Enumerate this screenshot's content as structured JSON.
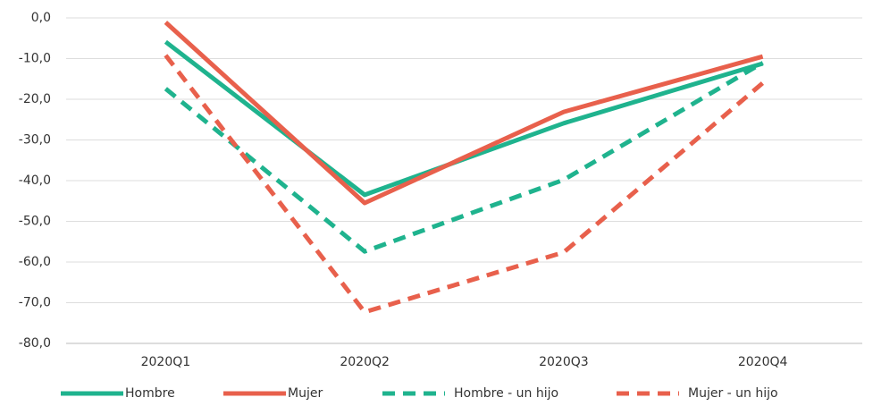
{
  "chart_data": {
    "type": "line",
    "categories": [
      "2020Q1",
      "2020Q2",
      "2020Q3",
      "2020Q4"
    ],
    "series": [
      {
        "name": "Hombre",
        "color": "#1fb38e",
        "dashed": false,
        "values": [
          -5.9,
          -43.5,
          -25.9,
          -11.2
        ]
      },
      {
        "name": "Mujer",
        "color": "#e8604c",
        "dashed": false,
        "values": [
          -1.1,
          -45.5,
          -23.1,
          -9.5
        ]
      },
      {
        "name": "Hombre - un hijo",
        "color": "#1fb38e",
        "dashed": true,
        "values": [
          -17.4,
          -57.4,
          -39.8,
          -11.0
        ]
      },
      {
        "name": "Mujer - un hijo",
        "color": "#e8604c",
        "dashed": true,
        "values": [
          -9.2,
          -72.3,
          -57.6,
          -16.0
        ]
      }
    ],
    "ylim": [
      -80,
      0
    ],
    "yticks": [
      {
        "value": 0,
        "label": "0,0"
      },
      {
        "value": -10,
        "label": "-10,0"
      },
      {
        "value": -20,
        "label": "-20,0"
      },
      {
        "value": -30,
        "label": "-30,0"
      },
      {
        "value": -40,
        "label": "-40,0"
      },
      {
        "value": -50,
        "label": "-50,0"
      },
      {
        "value": -60,
        "label": "-60,0"
      },
      {
        "value": -70,
        "label": "-70,0"
      },
      {
        "value": -80,
        "label": "-80,0"
      }
    ],
    "grid": true,
    "legend": "bottom"
  }
}
